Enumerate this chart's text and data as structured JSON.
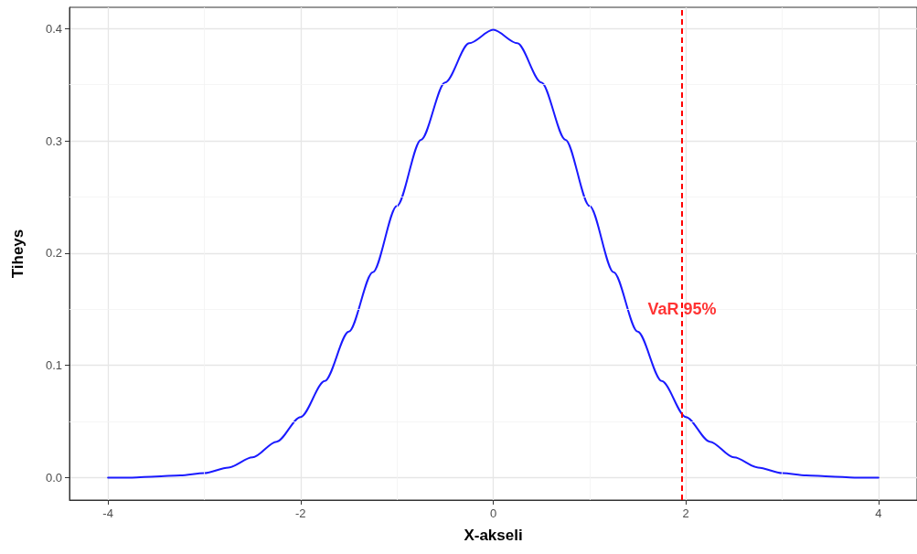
{
  "chart_data": {
    "type": "line",
    "xlabel": "X-akseli",
    "ylabel": "Tiheys",
    "x": [
      -4,
      -3.75,
      -3.5,
      -3.25,
      -3,
      -2.75,
      -2.5,
      -2.25,
      -2,
      -1.75,
      -1.5,
      -1.25,
      -1,
      -0.75,
      -0.5,
      -0.25,
      0,
      0.25,
      0.5,
      0.75,
      1,
      1.25,
      1.5,
      1.75,
      2,
      2.25,
      2.5,
      2.75,
      3,
      3.25,
      3.5,
      3.75,
      4
    ],
    "series": [
      {
        "color": "#1a1aff",
        "values": [
          0.0,
          0.0,
          0.001,
          0.002,
          0.004,
          0.009,
          0.018,
          0.032,
          0.054,
          0.086,
          0.13,
          0.183,
          0.242,
          0.301,
          0.352,
          0.387,
          0.399,
          0.387,
          0.352,
          0.301,
          0.242,
          0.183,
          0.13,
          0.086,
          0.054,
          0.032,
          0.018,
          0.009,
          0.004,
          0.002,
          0.001,
          0.0,
          0.0
        ]
      }
    ],
    "xlim": [
      -4.4,
      4.4
    ],
    "xticks": [
      -4,
      -2,
      0,
      2,
      4
    ],
    "ylim": [
      -0.02,
      0.419
    ],
    "yticks": [
      {
        "value": 0,
        "label": "0.0"
      },
      {
        "value": 0.1,
        "label": "0.1"
      },
      {
        "value": 0.2,
        "label": "0.2"
      },
      {
        "value": 0.3,
        "label": "0.3"
      },
      {
        "value": 0.4,
        "label": "0.4"
      }
    ],
    "ref_lines": [
      {
        "axis": "x",
        "value": 1.96,
        "color": "#ff0000",
        "line_style": "dashed"
      }
    ],
    "annotations": [
      {
        "text": "VaR 95%",
        "x": 1.96,
        "y": 0.15
      }
    ],
    "grid": true,
    "marker": "none",
    "line_style": "solid"
  }
}
